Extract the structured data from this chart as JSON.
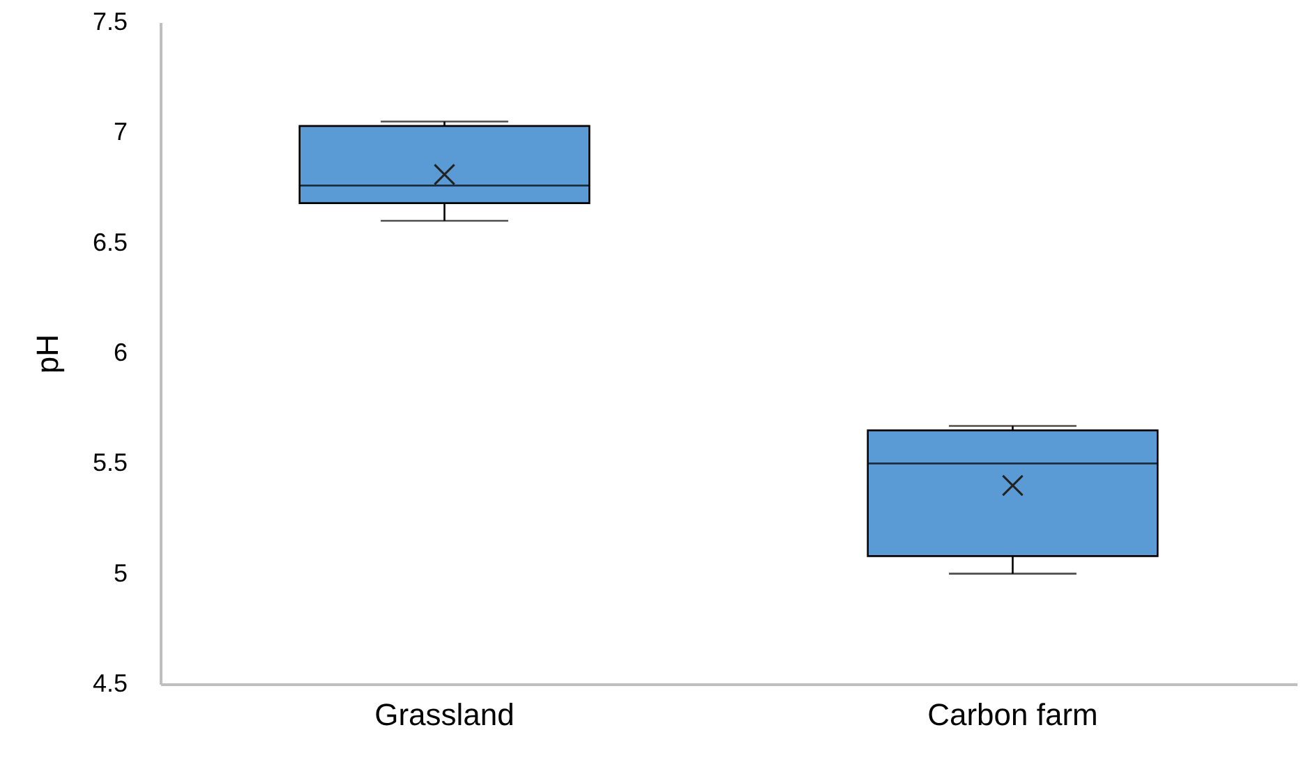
{
  "chart_data": {
    "type": "box",
    "ylabel": "pH",
    "categories": [
      "Grassland",
      "Carbon farm"
    ],
    "boxes": [
      {
        "low": 6.6,
        "q1": 6.68,
        "median": 6.76,
        "q3": 7.03,
        "high": 7.05,
        "mean": 6.81
      },
      {
        "low": 5.0,
        "q1": 5.08,
        "median": 5.5,
        "q3": 5.65,
        "high": 5.67,
        "mean": 5.4
      }
    ],
    "color": "#5b9bd5",
    "ylim": [
      4.5,
      7.5
    ],
    "yticks": [
      4.5,
      5,
      5.5,
      6,
      6.5,
      7,
      7.5
    ],
    "grid": false
  }
}
